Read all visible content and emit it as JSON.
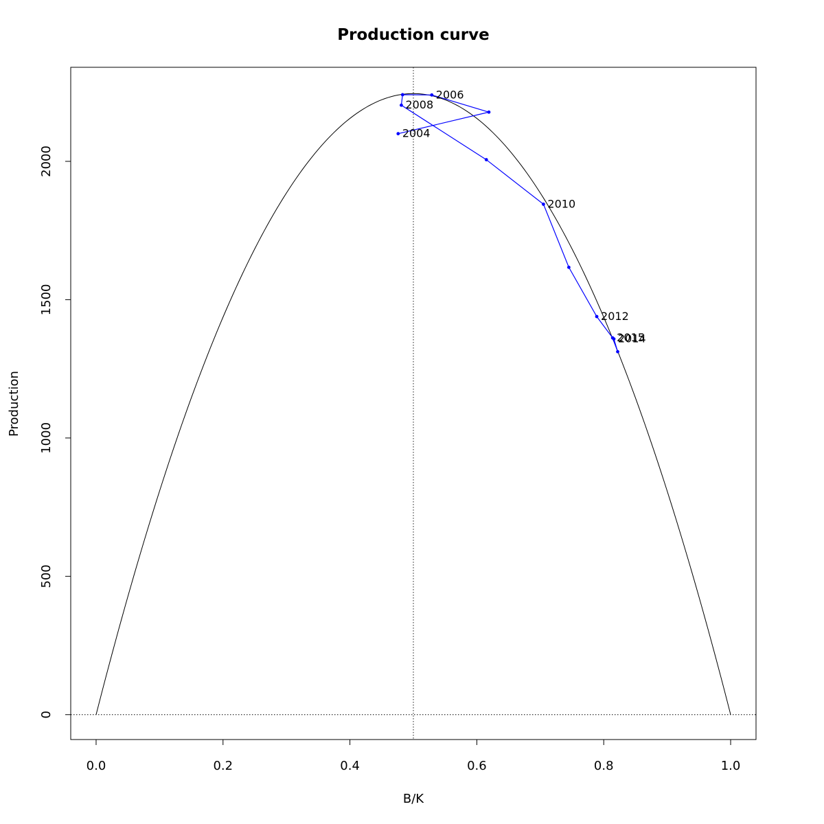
{
  "chart_data": {
    "type": "line",
    "title": "Production curve",
    "xlabel": "B/K",
    "ylabel": "Production",
    "xlim": [
      -0.04,
      1.04
    ],
    "ylim": [
      -90,
      2340
    ],
    "x_ticks": [
      0.0,
      0.2,
      0.4,
      0.6,
      0.8,
      1.0
    ],
    "x_tick_labels": [
      "0.0",
      "0.2",
      "0.4",
      "0.6",
      "0.8",
      "1.0"
    ],
    "y_ticks": [
      0,
      500,
      1000,
      1500,
      2000
    ],
    "y_tick_labels": [
      "0",
      "500",
      "1000",
      "1500",
      "2000"
    ],
    "grid": false,
    "reference_lines": {
      "vertical_x": 0.5,
      "horizontal_y": 0
    },
    "curve": {
      "type": "parabola",
      "x_from": 0,
      "x_to": 1,
      "peak_x": 0.5,
      "peak_y": 2245
    },
    "series": [
      {
        "x": [
          0.476,
          0.619,
          0.529,
          0.483,
          0.481,
          0.615,
          0.705,
          0.745,
          0.789,
          0.814,
          0.822,
          0.816
        ],
        "y": [
          2100,
          2178,
          2240,
          2241,
          2203,
          2006,
          1845,
          1617,
          1439,
          1362,
          1312,
          1358
        ],
        "labels": [
          "2004",
          "",
          "2006",
          "",
          "2008",
          "",
          "2010",
          "",
          "2012",
          "2015",
          "",
          "2014"
        ],
        "color": "#0000ff"
      }
    ],
    "colors": {
      "curve": "#000000",
      "series": "#0000ff",
      "reference": "#000000"
    }
  }
}
